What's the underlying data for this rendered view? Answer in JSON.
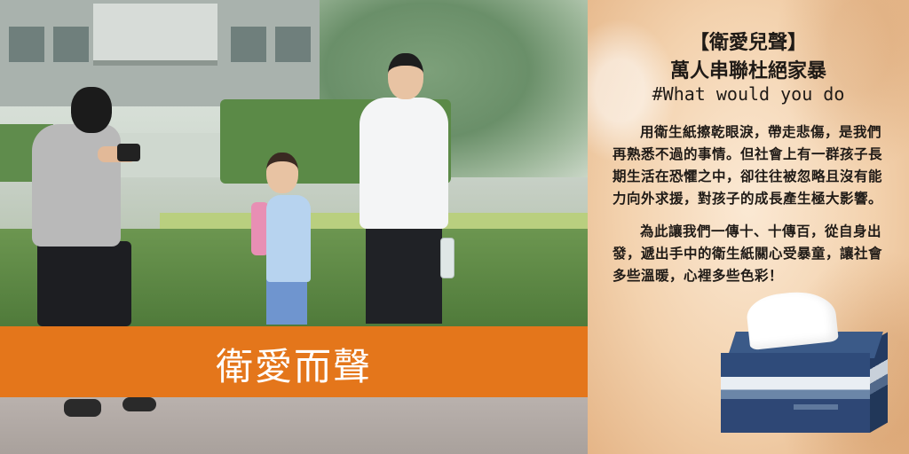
{
  "photo": {
    "banner_text": "衛愛而聲",
    "colors": {
      "banner": "#e4761b"
    }
  },
  "panel": {
    "title_line1": "【衛愛兒聲】",
    "title_line2": "萬人串聯杜絕家暴",
    "hashtag": "#What would you do",
    "paragraph1": "用衛生紙擦乾眼淚，帶走悲傷，是我們再熟悉不過的事情。但社會上有一群孩子長期生活在恐懼之中，卻往往被忽略且沒有能力向外求援，對孩子的成長產生極大影響。",
    "paragraph2": "為此讓我們一傳十、十傳百，從自身出發，遞出手中的衛生紙關心受暴童，讓社會多些溫暖，心裡多些色彩！"
  }
}
